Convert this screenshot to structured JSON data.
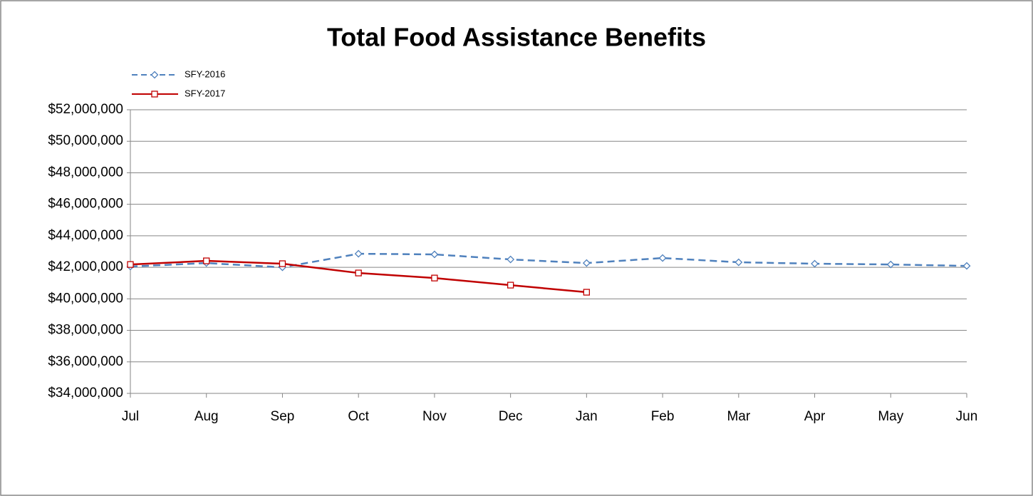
{
  "chart_data": {
    "type": "line",
    "title": "Total Food Assistance Benefits",
    "categories": [
      "Jul",
      "Aug",
      "Sep",
      "Oct",
      "Nov",
      "Dec",
      "Jan",
      "Feb",
      "Mar",
      "Apr",
      "May",
      "Jun"
    ],
    "series": [
      {
        "name": "SFY-2016",
        "color": "#4f81bd",
        "line_style": "dashed",
        "marker": "diamond",
        "values": [
          42050000,
          42270000,
          42000000,
          42860000,
          42820000,
          42500000,
          42270000,
          42590000,
          42320000,
          42230000,
          42180000,
          42090000
        ]
      },
      {
        "name": "SFY-2017",
        "color": "#c00000",
        "line_style": "solid",
        "marker": "square",
        "values": [
          42180000,
          42410000,
          42230000,
          41640000,
          41320000,
          40870000,
          40420000,
          null,
          null,
          null,
          null,
          null
        ]
      }
    ],
    "ylim": [
      34000000,
      52000000
    ],
    "yticks": [
      {
        "value": 34000000,
        "label": "$34,000,000"
      },
      {
        "value": 36000000,
        "label": "$36,000,000"
      },
      {
        "value": 38000000,
        "label": "$38,000,000"
      },
      {
        "value": 40000000,
        "label": "$40,000,000"
      },
      {
        "value": 42000000,
        "label": "$42,000,000"
      },
      {
        "value": 44000000,
        "label": "$44,000,000"
      },
      {
        "value": 46000000,
        "label": "$46,000,000"
      },
      {
        "value": 48000000,
        "label": "$48,000,000"
      },
      {
        "value": 50000000,
        "label": "$50,000,000"
      },
      {
        "value": 52000000,
        "label": "$52,000,000"
      }
    ],
    "grid": true,
    "legend": "top-left"
  }
}
